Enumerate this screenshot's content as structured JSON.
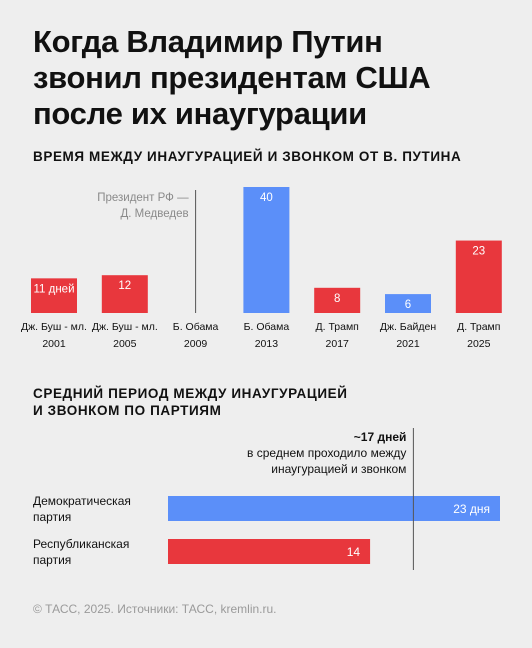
{
  "header": {
    "title_lines": [
      "Когда Владимир Путин",
      "звонил президентам США",
      "после их инаугурации"
    ]
  },
  "section1": {
    "title": "ВРЕМЯ МЕЖДУ ИНАУГУРАЦИЕЙ И ЗВОНКОМ ОТ В. ПУТИНА"
  },
  "section2": {
    "title_lines": [
      "СРЕДНИЙ ПЕРИОД МЕЖДУ ИНАУГУРАЦИЕЙ",
      "И ЗВОНКОМ ПО ПАРТИЯМ"
    ]
  },
  "colors": {
    "democrat": "#5b8ff9",
    "republican": "#e8373d",
    "text": "#111111",
    "muted": "#8a8a8a",
    "divider": "#555555"
  },
  "chart_data": [
    {
      "type": "bar",
      "title": "ВРЕМЯ МЕЖДУ ИНАУГУРАЦИЕЙ И ЗВОНКОМ ОТ В. ПУТИНА",
      "categories": [
        {
          "name": "Дж. Буш - мл.",
          "year": "2001"
        },
        {
          "name": "Дж. Буш - мл.",
          "year": "2005"
        },
        {
          "name": "Б. Обама",
          "year": "2009"
        },
        {
          "name": "Б. Обама",
          "year": "2013"
        },
        {
          "name": "Д. Трамп",
          "year": "2017"
        },
        {
          "name": "Дж. Байден",
          "year": "2021"
        },
        {
          "name": "Д. Трамп",
          "year": "2025"
        }
      ],
      "values": [
        11,
        12,
        null,
        40,
        8,
        6,
        23
      ],
      "value_labels": [
        "11 дней",
        "12",
        "",
        "40",
        "8",
        "6",
        "23"
      ],
      "party": [
        "republican",
        "republican",
        "democrat",
        "democrat",
        "republican",
        "democrat",
        "republican"
      ],
      "annotations": [
        {
          "category_index": 2,
          "lines": [
            "Президент РФ —",
            "Д. Медведев"
          ]
        }
      ],
      "ylim": [
        0,
        40
      ]
    },
    {
      "type": "bar",
      "orientation": "horizontal",
      "title": "СРЕДНИЙ ПЕРИОД МЕЖДУ ИНАУГУРАЦИЕЙ И ЗВОНКОМ ПО ПАРТИЯМ",
      "categories": [
        {
          "lines": [
            "Демократическая",
            "партия"
          ],
          "party": "democrat"
        },
        {
          "lines": [
            "Республиканская",
            "партия"
          ],
          "party": "republican"
        }
      ],
      "values": [
        23,
        14
      ],
      "value_labels": [
        "23 дня",
        "14"
      ],
      "reference_line": {
        "value": 17,
        "label_lines": [
          "~17 дней",
          "в среднем проходило между",
          "инаугурацией и звонком"
        ]
      },
      "xlim": [
        0,
        23
      ]
    }
  ],
  "footer": {
    "text": "© ТАСС, 2025. Источники: ТАСС, kremlin.ru."
  }
}
